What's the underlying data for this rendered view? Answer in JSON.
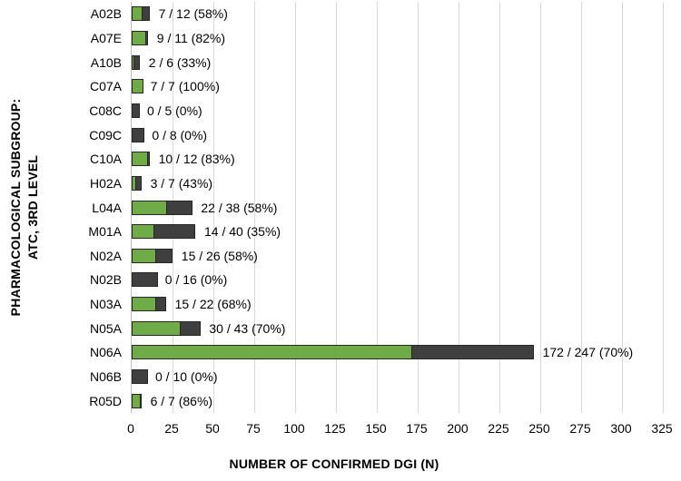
{
  "chart_data": {
    "type": "bar",
    "orientation": "horizontal-stacked",
    "xlabel": "NUMBER OF CONFIRMED DGI (N)",
    "ylabel_line1": "PHARMACOLOGICAL SUBGROUP:",
    "ylabel_line2": "ATC, 3RD LEVEL",
    "xlim": [
      0,
      325
    ],
    "xticks": [
      0,
      25,
      50,
      75,
      100,
      125,
      150,
      175,
      200,
      225,
      250,
      275,
      300,
      325
    ],
    "grid": true,
    "legend": "none",
    "series": [
      {
        "name": "confirmed",
        "color": "#6FAC47"
      },
      {
        "name": "not-confirmed",
        "color": "#3F3F3F"
      }
    ],
    "rows": [
      {
        "category": "A02B",
        "confirmed": 7,
        "total": 12,
        "label": "7 / 12 (58%)"
      },
      {
        "category": "A07E",
        "confirmed": 9,
        "total": 11,
        "label": "9 / 11 (82%)"
      },
      {
        "category": "A10B",
        "confirmed": 2,
        "total": 6,
        "label": "2 / 6 (33%)"
      },
      {
        "category": "C07A",
        "confirmed": 7,
        "total": 7,
        "label": "7 / 7 (100%)"
      },
      {
        "category": "C08C",
        "confirmed": 0,
        "total": 5,
        "label": "0 / 5 (0%)"
      },
      {
        "category": "C09C",
        "confirmed": 0,
        "total": 8,
        "label": "0 / 8 (0%)"
      },
      {
        "category": "C10A",
        "confirmed": 10,
        "total": 12,
        "label": "10 / 12 (83%)"
      },
      {
        "category": "H02A",
        "confirmed": 3,
        "total": 7,
        "label": "3 / 7 (43%)"
      },
      {
        "category": "L04A",
        "confirmed": 22,
        "total": 38,
        "label": "22 / 38 (58%)"
      },
      {
        "category": "M01A",
        "confirmed": 14,
        "total": 40,
        "label": "14 / 40 (35%)"
      },
      {
        "category": "N02A",
        "confirmed": 15,
        "total": 26,
        "label": "15 / 26 (58%)"
      },
      {
        "category": "N02B",
        "confirmed": 0,
        "total": 16,
        "label": "0 / 16 (0%)"
      },
      {
        "category": "N03A",
        "confirmed": 15,
        "total": 22,
        "label": "15 / 22 (68%)"
      },
      {
        "category": "N05A",
        "confirmed": 30,
        "total": 43,
        "label": "30 / 43 (70%)"
      },
      {
        "category": "N06A",
        "confirmed": 172,
        "total": 247,
        "label": "172 / 247 (70%)"
      },
      {
        "category": "N06B",
        "confirmed": 0,
        "total": 10,
        "label": "0 / 10 (0%)"
      },
      {
        "category": "R05D",
        "confirmed": 6,
        "total": 7,
        "label": "6 / 7 (86%)"
      }
    ],
    "colors": {
      "bar_green": "#6FAC47",
      "bar_dark": "#3F3F3F",
      "bar_border": "#262626",
      "gridline": "#D9D9D9",
      "axis_line": "#BFBFBF",
      "text": "#000000"
    }
  }
}
